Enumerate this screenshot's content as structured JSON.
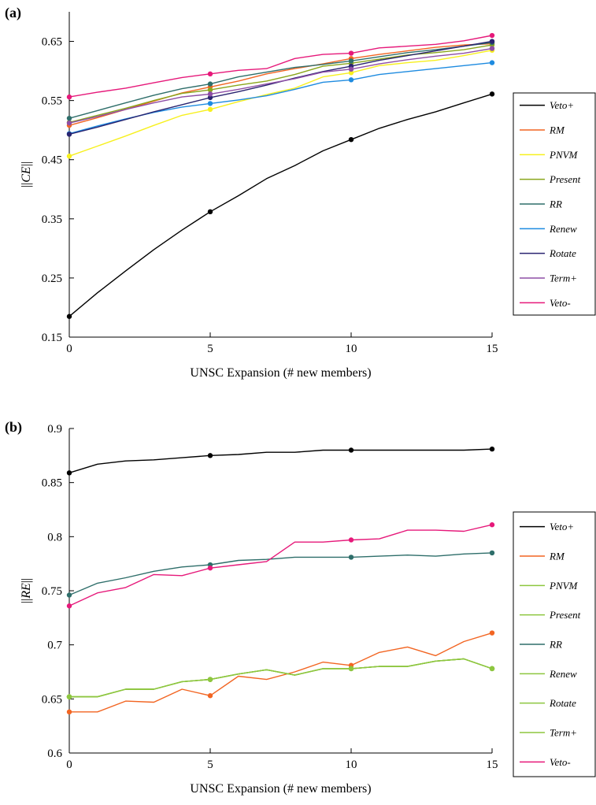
{
  "chart_data": [
    {
      "panel_label": "(a)",
      "type": "line",
      "xlabel": "UNSC Expansion (# new members)",
      "ylabel": "||CE||",
      "ylabel_parts": [
        "||",
        "CE",
        "||"
      ],
      "xlim": [
        0,
        15
      ],
      "ylim": [
        0.15,
        0.7
      ],
      "xticks": [
        0,
        5,
        10,
        15
      ],
      "xtick_labels": [
        "0",
        "5",
        "10",
        "15"
      ],
      "yticks": [
        0.15,
        0.25,
        0.35,
        0.45,
        0.55,
        0.65
      ],
      "ytick_labels": [
        "0.15",
        "0.25",
        "0.35",
        "0.45",
        "0.55",
        "0.65"
      ],
      "grid": false,
      "legend_position": "right",
      "marker_x": [
        0,
        5,
        10,
        15
      ],
      "x": [
        0,
        1,
        2,
        3,
        4,
        5,
        6,
        7,
        8,
        9,
        10,
        11,
        12,
        13,
        14,
        15
      ],
      "series": [
        {
          "name": "Veto+",
          "color": "#000000",
          "values": [
            0.185,
            0.225,
            0.262,
            0.298,
            0.331,
            0.362,
            0.389,
            0.418,
            0.44,
            0.465,
            0.484,
            0.503,
            0.518,
            0.531,
            0.546,
            0.561
          ]
        },
        {
          "name": "RM",
          "color": "#f26522",
          "values": [
            0.508,
            0.521,
            0.535,
            0.549,
            0.563,
            0.573,
            0.583,
            0.595,
            0.604,
            0.612,
            0.621,
            0.628,
            0.634,
            0.64,
            0.644,
            0.646
          ]
        },
        {
          "name": "PNVM",
          "color": "#f7f01e",
          "values": [
            0.456,
            0.473,
            0.49,
            0.508,
            0.525,
            0.535,
            0.548,
            0.56,
            0.571,
            0.59,
            0.597,
            0.609,
            0.614,
            0.618,
            0.626,
            0.635
          ]
        },
        {
          "name": "Present",
          "color": "#8aa61c",
          "values": [
            0.513,
            0.525,
            0.537,
            0.55,
            0.562,
            0.568,
            0.576,
            0.583,
            0.594,
            0.608,
            0.613,
            0.62,
            0.627,
            0.631,
            0.636,
            0.644
          ]
        },
        {
          "name": "RR",
          "color": "#2e6e6a",
          "values": [
            0.52,
            0.533,
            0.546,
            0.559,
            0.57,
            0.578,
            0.59,
            0.598,
            0.606,
            0.611,
            0.617,
            0.624,
            0.631,
            0.636,
            0.642,
            0.648
          ]
        },
        {
          "name": "Renew",
          "color": "#1e8be0",
          "values": [
            0.494,
            0.507,
            0.519,
            0.53,
            0.539,
            0.545,
            0.551,
            0.558,
            0.569,
            0.581,
            0.585,
            0.594,
            0.599,
            0.604,
            0.609,
            0.614
          ]
        },
        {
          "name": "Rotate",
          "color": "#2a2470",
          "values": [
            0.493,
            0.505,
            0.518,
            0.531,
            0.543,
            0.555,
            0.565,
            0.576,
            0.588,
            0.599,
            0.608,
            0.618,
            0.626,
            0.634,
            0.642,
            0.65
          ]
        },
        {
          "name": "Term+",
          "color": "#8e4ea6",
          "values": [
            0.512,
            0.523,
            0.535,
            0.546,
            0.556,
            0.561,
            0.569,
            0.578,
            0.587,
            0.598,
            0.603,
            0.612,
            0.619,
            0.625,
            0.63,
            0.638
          ]
        },
        {
          "name": "Veto-",
          "color": "#e6197a",
          "values": [
            0.556,
            0.564,
            0.571,
            0.58,
            0.589,
            0.595,
            0.601,
            0.604,
            0.621,
            0.628,
            0.63,
            0.639,
            0.642,
            0.645,
            0.651,
            0.66
          ]
        }
      ]
    },
    {
      "panel_label": "(b)",
      "type": "line",
      "xlabel": "UNSC Expansion (# new members)",
      "ylabel": "||RE||",
      "ylabel_parts": [
        "||",
        "RE",
        "||"
      ],
      "xlim": [
        0,
        15
      ],
      "ylim": [
        0.6,
        0.9
      ],
      "xticks": [
        0,
        5,
        10,
        15
      ],
      "xtick_labels": [
        "0",
        "5",
        "10",
        "15"
      ],
      "yticks": [
        0.6,
        0.65,
        0.7,
        0.75,
        0.8,
        0.85,
        0.9
      ],
      "ytick_labels": [
        "0.6",
        "0.65",
        "0.7",
        "0.75",
        "0.8",
        "0.85",
        "0.9"
      ],
      "grid": false,
      "legend_position": "right",
      "marker_x": [
        0,
        5,
        10,
        15
      ],
      "x": [
        0,
        1,
        2,
        3,
        4,
        5,
        6,
        7,
        8,
        9,
        10,
        11,
        12,
        13,
        14,
        15
      ],
      "series": [
        {
          "name": "Veto+",
          "color": "#000000",
          "values": [
            0.859,
            0.867,
            0.87,
            0.871,
            0.873,
            0.875,
            0.876,
            0.878,
            0.878,
            0.88,
            0.88,
            0.88,
            0.88,
            0.88,
            0.88,
            0.881
          ]
        },
        {
          "name": "RM",
          "color": "#f26522",
          "values": [
            0.638,
            0.638,
            0.648,
            0.647,
            0.659,
            0.653,
            0.671,
            0.668,
            0.675,
            0.684,
            0.681,
            0.693,
            0.698,
            0.69,
            0.703,
            0.711
          ]
        },
        {
          "name": "PNVM",
          "color": "#8dc63f",
          "values": [
            0.652,
            0.652,
            0.659,
            0.659,
            0.666,
            0.668,
            0.673,
            0.677,
            0.672,
            0.678,
            0.678,
            0.68,
            0.68,
            0.685,
            0.687,
            0.678
          ]
        },
        {
          "name": "Present",
          "color": "#8dc63f",
          "values": [
            0.652,
            0.652,
            0.659,
            0.659,
            0.666,
            0.668,
            0.673,
            0.677,
            0.672,
            0.678,
            0.678,
            0.68,
            0.68,
            0.685,
            0.687,
            0.678
          ]
        },
        {
          "name": "RR",
          "color": "#2e6e6a",
          "values": [
            0.746,
            0.757,
            0.762,
            0.768,
            0.772,
            0.774,
            0.778,
            0.779,
            0.781,
            0.781,
            0.781,
            0.782,
            0.783,
            0.782,
            0.784,
            0.785
          ]
        },
        {
          "name": "Renew",
          "color": "#8dc63f",
          "values": [
            0.652,
            0.652,
            0.659,
            0.659,
            0.666,
            0.668,
            0.673,
            0.677,
            0.672,
            0.678,
            0.678,
            0.68,
            0.68,
            0.685,
            0.687,
            0.678
          ]
        },
        {
          "name": "Rotate",
          "color": "#8dc63f",
          "values": [
            0.652,
            0.652,
            0.659,
            0.659,
            0.666,
            0.668,
            0.673,
            0.677,
            0.672,
            0.678,
            0.678,
            0.68,
            0.68,
            0.685,
            0.687,
            0.678
          ]
        },
        {
          "name": "Term+",
          "color": "#8dc63f",
          "values": [
            0.652,
            0.652,
            0.659,
            0.659,
            0.666,
            0.668,
            0.673,
            0.677,
            0.672,
            0.678,
            0.678,
            0.68,
            0.68,
            0.685,
            0.687,
            0.678
          ]
        },
        {
          "name": "Veto-",
          "color": "#e6197a",
          "values": [
            0.736,
            0.748,
            0.753,
            0.765,
            0.764,
            0.771,
            0.774,
            0.777,
            0.795,
            0.795,
            0.797,
            0.798,
            0.806,
            0.806,
            0.805,
            0.811
          ]
        }
      ]
    }
  ]
}
